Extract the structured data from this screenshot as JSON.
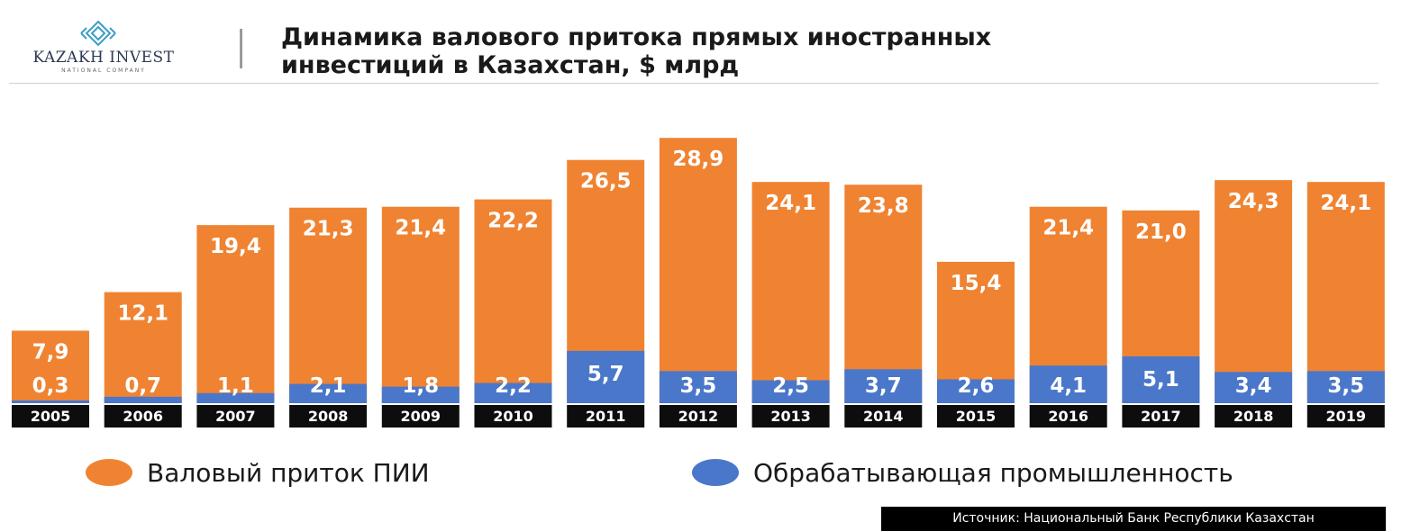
{
  "logo": {
    "text": "KAZAKH INVEST",
    "subtext": "NATIONAL COMPANY"
  },
  "title": "Динамика валового притока прямых иностранных инвестиций в Казахстан, $ млрд",
  "colors": {
    "orange": "#ef8332",
    "blue": "#4a77c9",
    "year_band": "#0d0d0d",
    "label": "#ffffff"
  },
  "legend": [
    {
      "label": "Валовый приток ПИИ",
      "color": "#ef8332"
    },
    {
      "label": "Обрабатывающая промышленность",
      "color": "#4a77c9"
    }
  ],
  "source": "Источник: Национальный Банк  Республики Казахстан",
  "chart_data": {
    "type": "bar",
    "categories": [
      "2005",
      "2006",
      "2007",
      "2008",
      "2009",
      "2010",
      "2011",
      "2012",
      "2013",
      "2014",
      "2015",
      "2016",
      "2017",
      "2018",
      "2019"
    ],
    "series": [
      {
        "name": "Валовый приток ПИИ",
        "values": [
          7.9,
          12.1,
          19.4,
          21.3,
          21.4,
          22.2,
          26.5,
          28.9,
          24.1,
          23.8,
          15.4,
          21.4,
          21.0,
          24.3,
          24.1
        ],
        "labels": [
          "7,9",
          "12,1",
          "19,4",
          "21,3",
          "21,4",
          "22,2",
          "26,5",
          "28,9",
          "24,1",
          "23,8",
          "15,4",
          "21,4",
          "21,0",
          "24,3",
          "24,1"
        ]
      },
      {
        "name": "Обрабатывающая промышленность",
        "values": [
          0.3,
          0.7,
          1.1,
          2.1,
          1.8,
          2.2,
          5.7,
          3.5,
          2.5,
          3.7,
          2.6,
          4.1,
          5.1,
          3.4,
          3.5
        ],
        "labels": [
          "0,3",
          "0,7",
          "1,1",
          "2,1",
          "1,8",
          "2,2",
          "5,7",
          "3,5",
          "2,5",
          "3,7",
          "2,6",
          "4,1",
          "5,1",
          "3,4",
          "3,5"
        ]
      }
    ],
    "legend_position": "bottom"
  }
}
